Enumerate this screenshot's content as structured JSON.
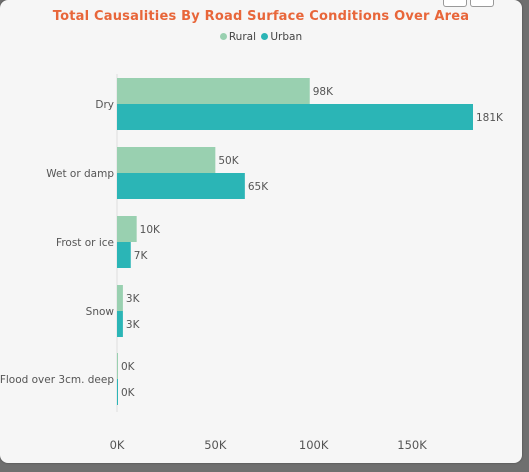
{
  "colors": {
    "title": "#e8663a",
    "rural": "#99d0b0",
    "urban": "#2bb5b6",
    "text": "#555555",
    "baseline": "#dddddd"
  },
  "chart_data": {
    "type": "bar",
    "orientation": "horizontal",
    "title": "Total Causalities By Road Surface Conditions Over Area",
    "legend_position": "top-center",
    "categories": [
      "Dry",
      "Wet or damp",
      "Frost or ice",
      "Snow",
      "Flood over 3cm. deep"
    ],
    "series": [
      {
        "name": "Rural",
        "values": [
          98000,
          50000,
          10000,
          3000,
          100
        ],
        "labels": [
          "98K",
          "50K",
          "10K",
          "3K",
          "0K"
        ],
        "color": "#99d0b0"
      },
      {
        "name": "Urban",
        "values": [
          181000,
          65000,
          7000,
          3000,
          100
        ],
        "labels": [
          "181K",
          "65K",
          "7K",
          "3K",
          "0K"
        ],
        "color": "#2bb5b6"
      }
    ],
    "x_ticks": [
      0,
      50000,
      100000,
      150000
    ],
    "x_tick_labels": [
      "0K",
      "50K",
      "100K",
      "150K"
    ],
    "xlim": [
      0,
      181000
    ],
    "grid": false
  }
}
